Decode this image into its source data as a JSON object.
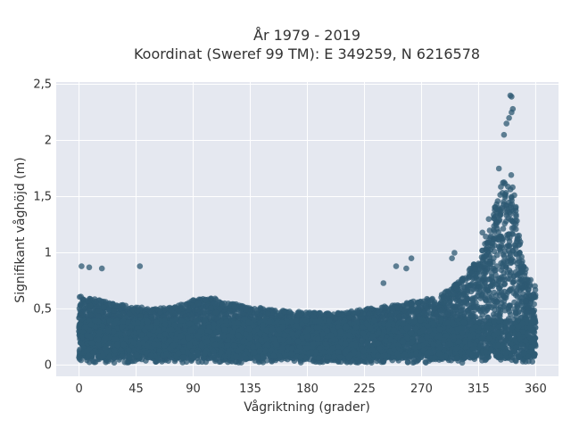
{
  "chart_data": {
    "type": "scatter",
    "title_line1": "År 1979 - 2019",
    "title_line2": "Koordinat (Sweref 99 TM): E 349259, N 6216578",
    "xlabel": "Vågriktning (grader)",
    "ylabel": "Signifikant våghöjd (m)",
    "xlim": [
      -18,
      378
    ],
    "ylim": [
      -0.1,
      2.52
    ],
    "xticks": [
      0,
      45,
      90,
      135,
      180,
      225,
      270,
      315,
      360
    ],
    "xtick_labels": [
      "0",
      "45",
      "90",
      "135",
      "180",
      "225",
      "270",
      "315",
      "360"
    ],
    "yticks": [
      0,
      0.5,
      1,
      1.5,
      2,
      2.5
    ],
    "ytick_labels": [
      "0",
      "0,5",
      "1",
      "1,5",
      "2",
      "2,5"
    ],
    "grid": true,
    "colors": {
      "marker": "#2e5a73",
      "plot_background": "#e5e8f0",
      "grid": "#ffffff"
    },
    "envelope_note_free": true,
    "direction_bins": [
      0,
      15,
      30,
      45,
      60,
      75,
      90,
      105,
      120,
      135,
      150,
      165,
      180,
      195,
      210,
      225,
      240,
      255,
      270,
      285,
      300,
      315,
      325,
      335,
      340,
      345,
      350,
      360
    ],
    "bulk_upper": [
      0.62,
      0.58,
      0.55,
      0.52,
      0.5,
      0.52,
      0.58,
      0.6,
      0.55,
      0.52,
      0.5,
      0.48,
      0.47,
      0.46,
      0.47,
      0.5,
      0.52,
      0.55,
      0.58,
      0.62,
      0.75,
      0.95,
      1.3,
      1.7,
      1.75,
      1.4,
      0.9,
      0.7
    ],
    "highlighted_points": [
      {
        "x": 340,
        "y": 2.4
      },
      {
        "x": 341,
        "y": 2.39
      },
      {
        "x": 342,
        "y": 2.28
      },
      {
        "x": 341,
        "y": 2.25
      },
      {
        "x": 339,
        "y": 2.2
      },
      {
        "x": 337,
        "y": 2.15
      },
      {
        "x": 335,
        "y": 2.05
      },
      {
        "x": 331,
        "y": 1.75
      },
      {
        "x": 323,
        "y": 1.3
      },
      {
        "x": 318,
        "y": 1.18
      },
      {
        "x": 320,
        "y": 1.08
      },
      {
        "x": 296,
        "y": 1.0
      },
      {
        "x": 294,
        "y": 0.95
      },
      {
        "x": 262,
        "y": 0.95
      },
      {
        "x": 250,
        "y": 0.88
      },
      {
        "x": 258,
        "y": 0.86
      },
      {
        "x": 240,
        "y": 0.73
      },
      {
        "x": 48,
        "y": 0.88
      },
      {
        "x": 2,
        "y": 0.88
      },
      {
        "x": 18,
        "y": 0.86
      },
      {
        "x": 8,
        "y": 0.87
      }
    ]
  }
}
